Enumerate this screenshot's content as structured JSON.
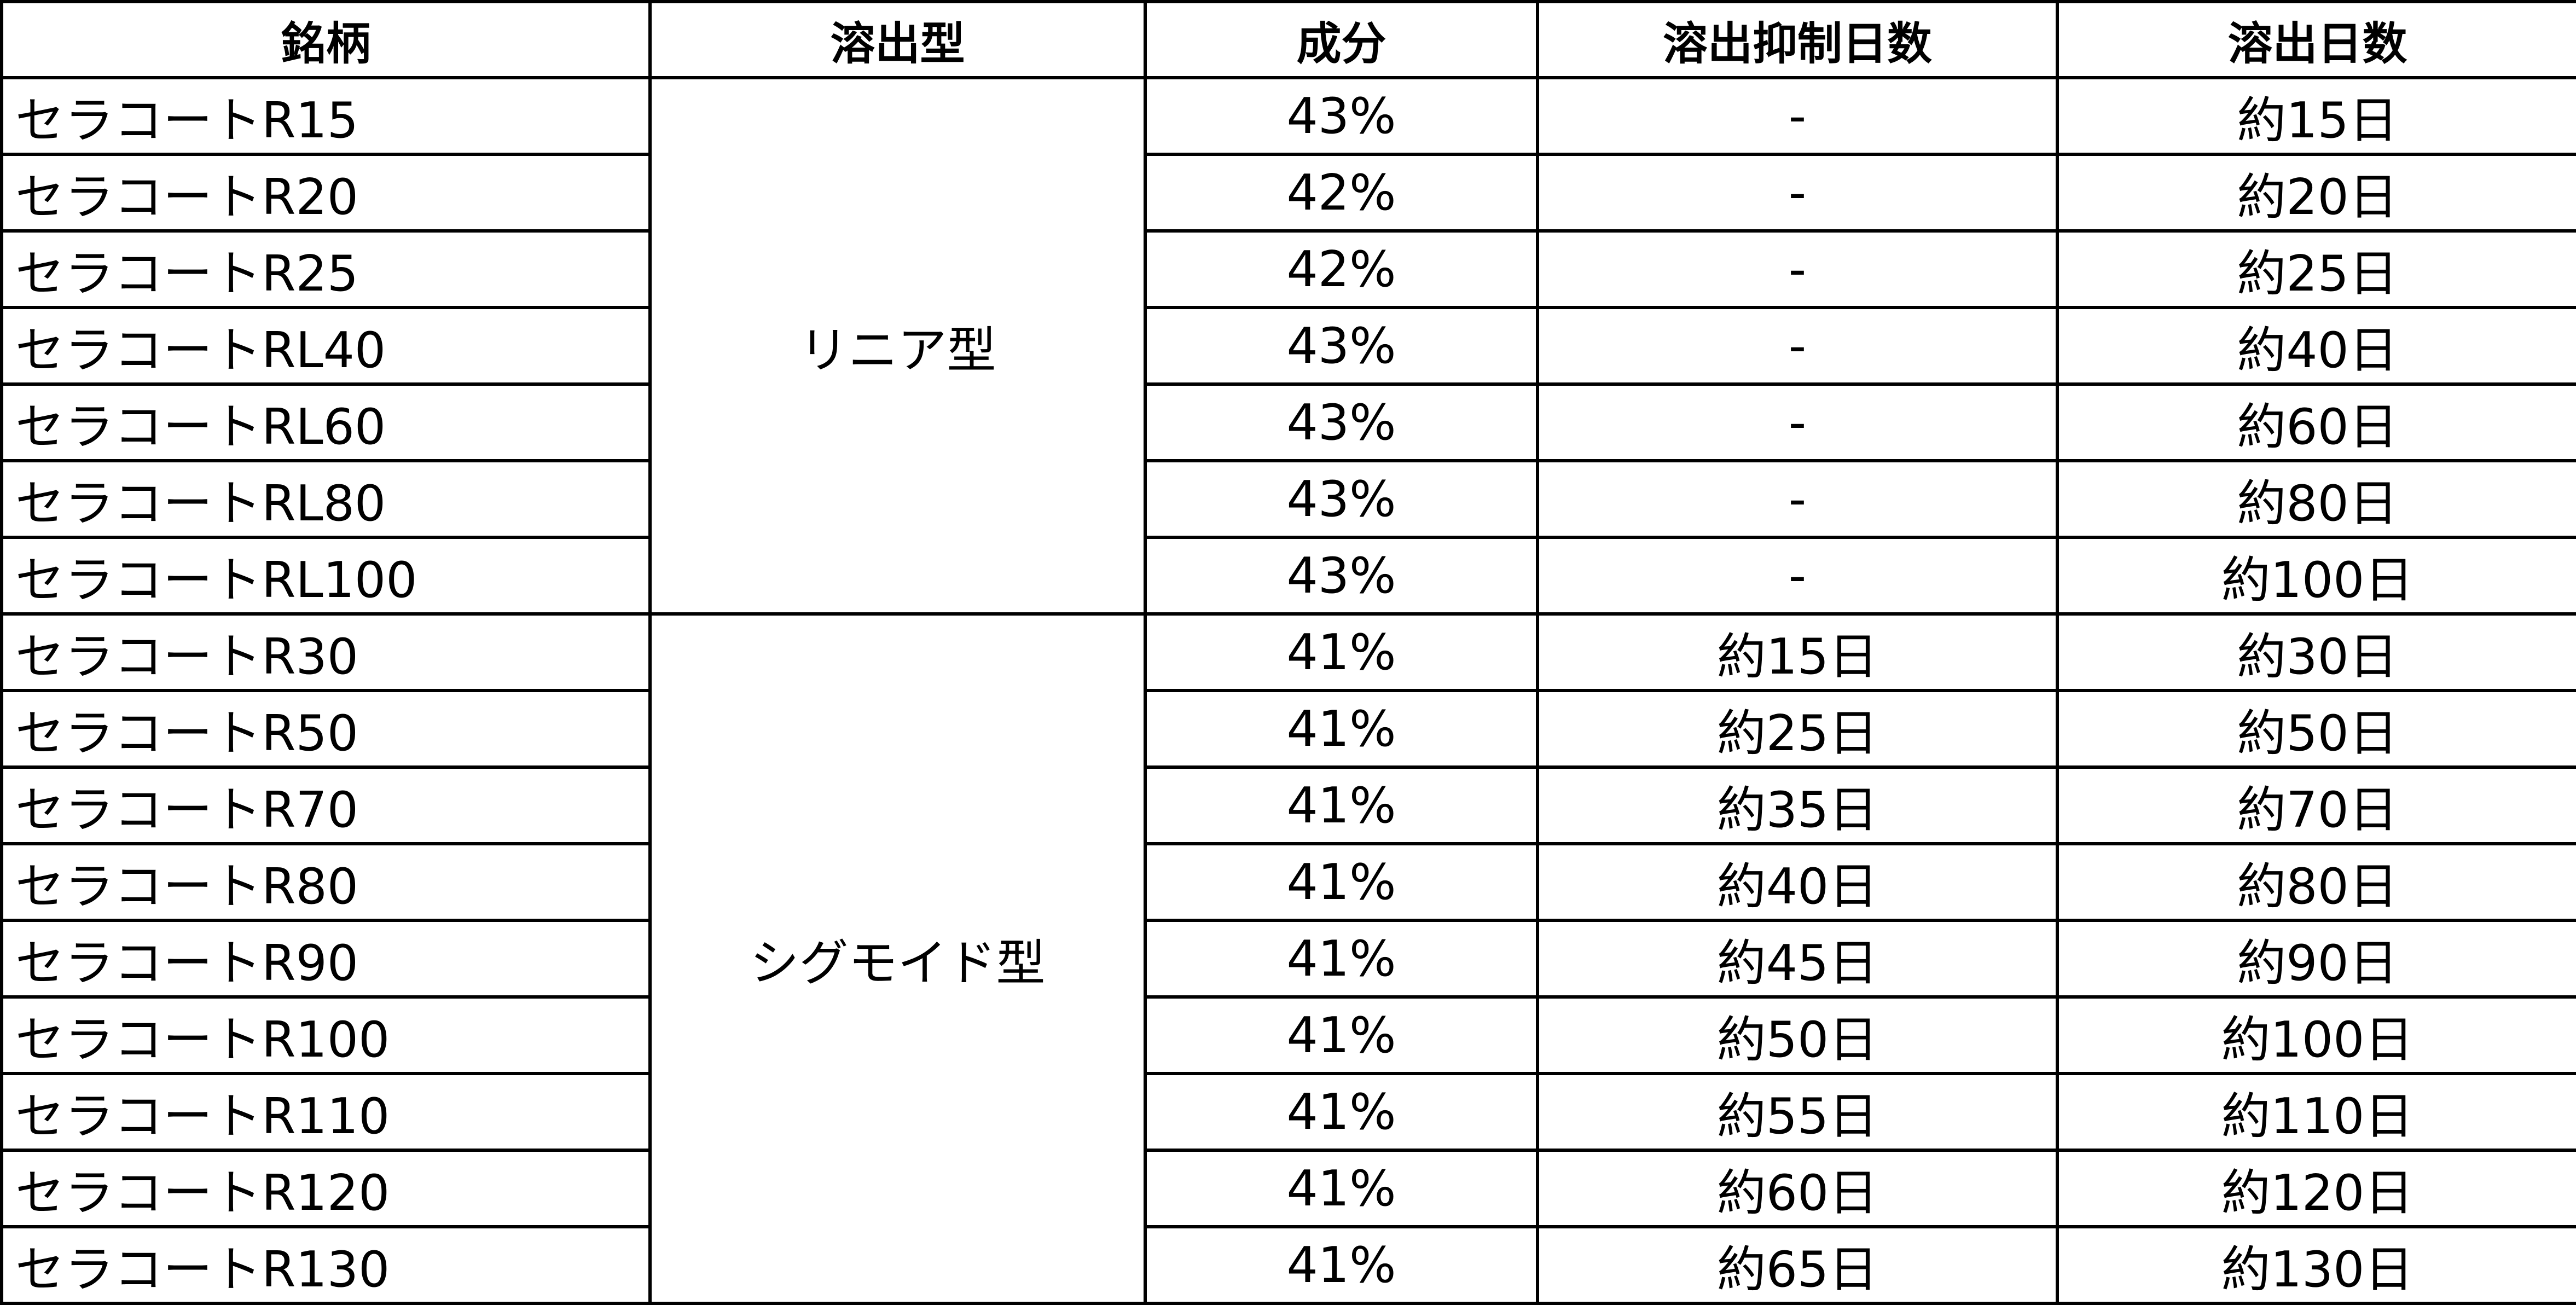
{
  "table": {
    "headers": [
      "銘柄",
      "溶出型",
      "成分",
      "溶出抑制日数",
      "溶出日数"
    ],
    "groups": [
      {
        "type": "リニア型",
        "rows": [
          {
            "name": "セラコートR15",
            "component": "43%",
            "suppression_days": "-",
            "release_days": "約15日"
          },
          {
            "name": "セラコートR20",
            "component": "42%",
            "suppression_days": "-",
            "release_days": "約20日"
          },
          {
            "name": "セラコートR25",
            "component": "42%",
            "suppression_days": "-",
            "release_days": "約25日"
          },
          {
            "name": "セラコートRL40",
            "component": "43%",
            "suppression_days": "-",
            "release_days": "約40日"
          },
          {
            "name": "セラコートRL60",
            "component": "43%",
            "suppression_days": "-",
            "release_days": "約60日"
          },
          {
            "name": "セラコートRL80",
            "component": "43%",
            "suppression_days": "-",
            "release_days": "約80日"
          },
          {
            "name": "セラコートRL100",
            "component": "43%",
            "suppression_days": "-",
            "release_days": "約100日"
          }
        ]
      },
      {
        "type": "シグモイド型",
        "rows": [
          {
            "name": "セラコートR30",
            "component": "41%",
            "suppression_days": "約15日",
            "release_days": "約30日"
          },
          {
            "name": "セラコートR50",
            "component": "41%",
            "suppression_days": "約25日",
            "release_days": "約50日"
          },
          {
            "name": "セラコートR70",
            "component": "41%",
            "suppression_days": "約35日",
            "release_days": "約70日"
          },
          {
            "name": "セラコートR80",
            "component": "41%",
            "suppression_days": "約40日",
            "release_days": "約80日"
          },
          {
            "name": "セラコートR90",
            "component": "41%",
            "suppression_days": "約45日",
            "release_days": "約90日"
          },
          {
            "name": "セラコートR100",
            "component": "41%",
            "suppression_days": "約50日",
            "release_days": "約100日"
          },
          {
            "name": "セラコートR110",
            "component": "41%",
            "suppression_days": "約55日",
            "release_days": "約110日"
          },
          {
            "name": "セラコートR120",
            "component": "41%",
            "suppression_days": "約60日",
            "release_days": "約120日"
          },
          {
            "name": "セラコートR130",
            "component": "41%",
            "suppression_days": "約65日",
            "release_days": "約130日"
          }
        ]
      }
    ]
  }
}
